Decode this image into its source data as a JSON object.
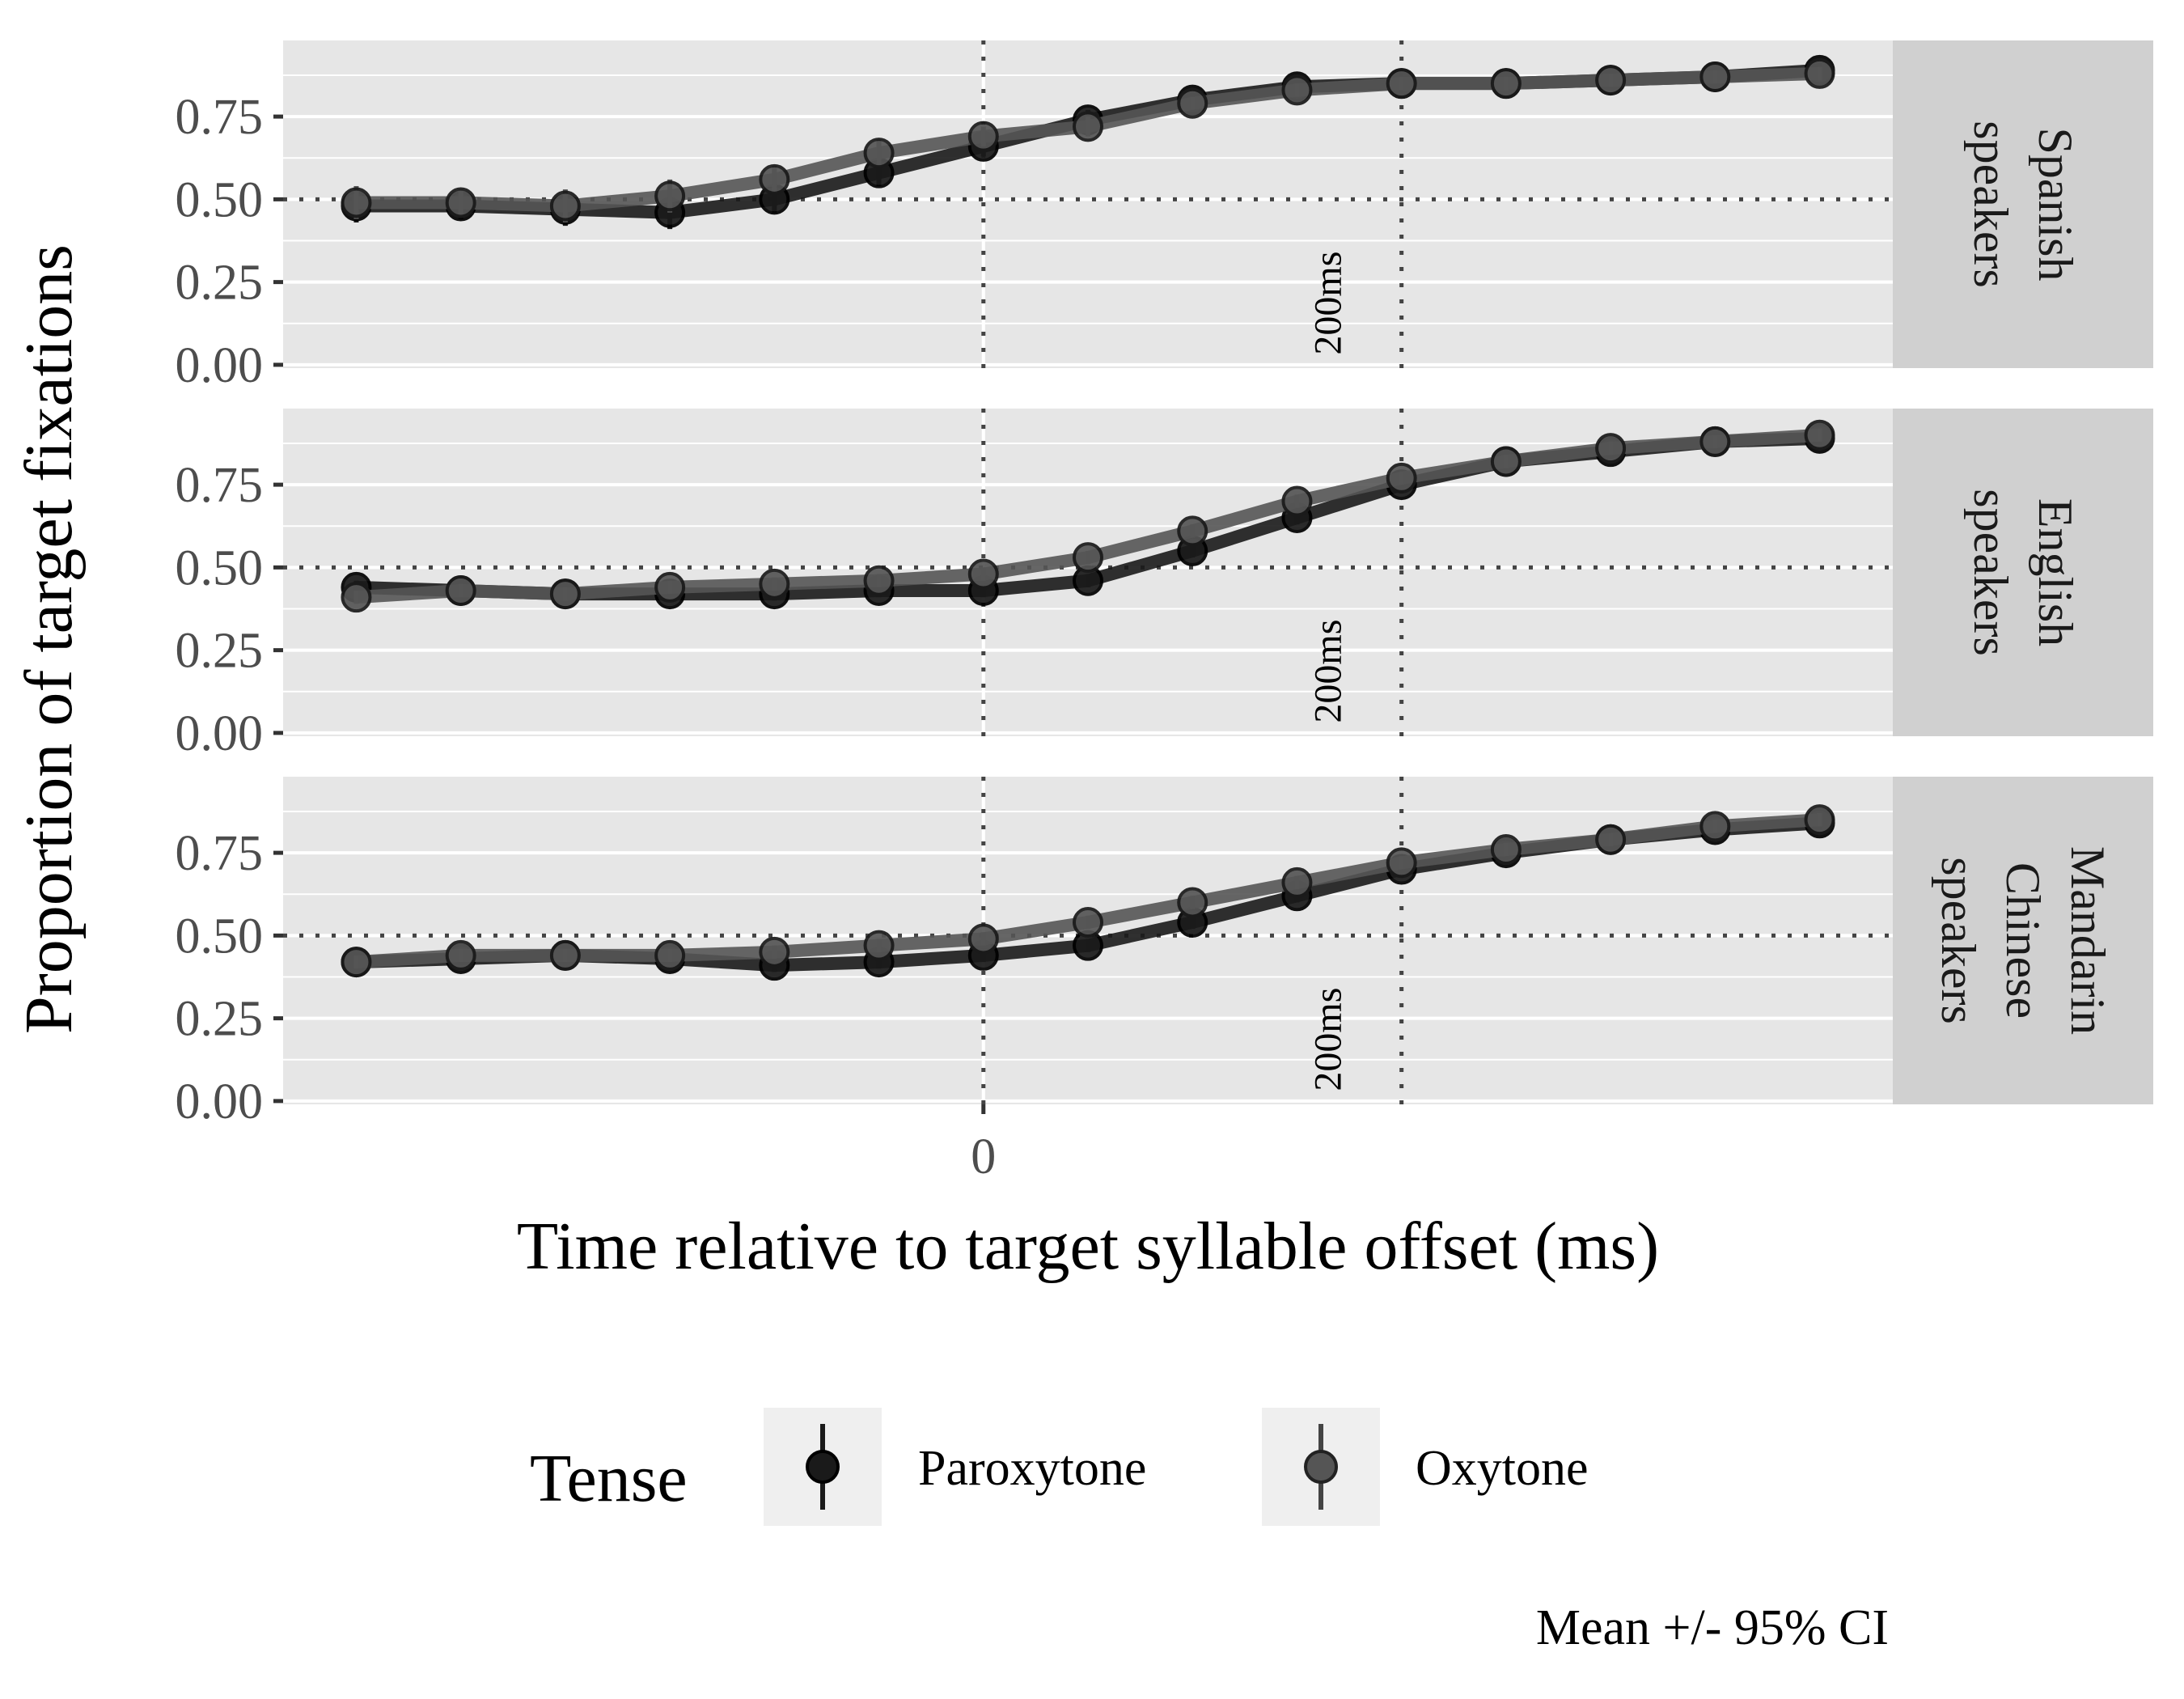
{
  "chart_data": {
    "type": "line",
    "ylabel": "Proportion of target fixations",
    "xlabel": "Time relative to target syllable offset (ms)",
    "x": [
      -600,
      -500,
      -400,
      -300,
      -200,
      -100,
      0,
      100,
      200,
      300,
      400,
      500,
      600,
      700,
      800
    ],
    "x_ticks": [
      0
    ],
    "x_tick_labels": [
      "0"
    ],
    "xlim": [
      -670,
      870
    ],
    "ylim": [
      -0.01,
      0.98
    ],
    "y_ticks": [
      0,
      0.25,
      0.5,
      0.75
    ],
    "y_tick_labels": [
      "0.00",
      "0.25",
      "0.50",
      "0.75"
    ],
    "reference_lines": {
      "h": 0.5,
      "v": [
        0,
        400
      ],
      "annotation": "200ms"
    },
    "grid": true,
    "panels": [
      {
        "strip": [
          "Spanish",
          "speakers"
        ],
        "series": [
          {
            "name": "Paroxytone",
            "values": [
              0.48,
              0.48,
              0.47,
              0.46,
              0.5,
              0.58,
              0.66,
              0.74,
              0.8,
              0.84,
              0.85,
              0.85,
              0.86,
              0.87,
              0.89
            ],
            "ci": [
              0.05,
              0.04,
              0.05,
              0.05,
              0.04,
              0.04,
              0.03,
              0.03,
              0.02,
              0.02,
              0.02,
              0.02,
              0.02,
              0.02,
              0.02
            ]
          },
          {
            "name": "Oxytone",
            "values": [
              0.49,
              0.49,
              0.48,
              0.51,
              0.56,
              0.64,
              0.69,
              0.72,
              0.79,
              0.83,
              0.85,
              0.85,
              0.86,
              0.87,
              0.88
            ],
            "ci": [
              0.05,
              0.04,
              0.05,
              0.05,
              0.04,
              0.04,
              0.03,
              0.03,
              0.02,
              0.02,
              0.02,
              0.02,
              0.02,
              0.02,
              0.02
            ]
          }
        ]
      },
      {
        "strip": [
          "English",
          "speakers"
        ],
        "series": [
          {
            "name": "Paroxytone",
            "values": [
              0.44,
              0.43,
              0.42,
              0.42,
              0.42,
              0.43,
              0.43,
              0.46,
              0.55,
              0.65,
              0.75,
              0.82,
              0.85,
              0.88,
              0.89
            ],
            "ci": [
              0.02,
              0.02,
              0.02,
              0.02,
              0.02,
              0.02,
              0.02,
              0.02,
              0.02,
              0.02,
              0.02,
              0.02,
              0.02,
              0.02,
              0.02
            ]
          },
          {
            "name": "Oxytone",
            "values": [
              0.41,
              0.43,
              0.42,
              0.44,
              0.45,
              0.46,
              0.48,
              0.53,
              0.61,
              0.7,
              0.77,
              0.82,
              0.86,
              0.88,
              0.9
            ],
            "ci": [
              0.02,
              0.02,
              0.02,
              0.02,
              0.02,
              0.02,
              0.02,
              0.02,
              0.02,
              0.02,
              0.02,
              0.02,
              0.02,
              0.02,
              0.02
            ]
          }
        ]
      },
      {
        "strip": [
          "Mandarin",
          "Chinese",
          "speakers"
        ],
        "series": [
          {
            "name": "Paroxytone",
            "values": [
              0.42,
              0.43,
              0.44,
              0.43,
              0.41,
              0.42,
              0.44,
              0.47,
              0.54,
              0.62,
              0.7,
              0.75,
              0.79,
              0.82,
              0.84
            ],
            "ci": [
              0.02,
              0.02,
              0.02,
              0.02,
              0.02,
              0.02,
              0.02,
              0.02,
              0.02,
              0.02,
              0.02,
              0.02,
              0.02,
              0.02,
              0.02
            ]
          },
          {
            "name": "Oxytone",
            "values": [
              0.42,
              0.44,
              0.44,
              0.44,
              0.45,
              0.47,
              0.49,
              0.54,
              0.6,
              0.66,
              0.72,
              0.76,
              0.79,
              0.83,
              0.85
            ],
            "ci": [
              0.02,
              0.02,
              0.02,
              0.02,
              0.02,
              0.02,
              0.02,
              0.02,
              0.02,
              0.02,
              0.02,
              0.02,
              0.02,
              0.02,
              0.02
            ]
          }
        ]
      }
    ],
    "legend": {
      "title": "Tense",
      "position": "bottom",
      "items": [
        {
          "name": "Paroxytone",
          "color": "#1a1a1a"
        },
        {
          "name": "Oxytone",
          "color": "#555555"
        }
      ]
    },
    "caption": "Mean +/- 95% CI",
    "colors": {
      "panel_bg": "#e6e6e6",
      "strip_bg": "#d0d0d0",
      "grid": "#ffffff",
      "Paroxytone": "#1a1a1a",
      "Oxytone": "#555555"
    }
  }
}
